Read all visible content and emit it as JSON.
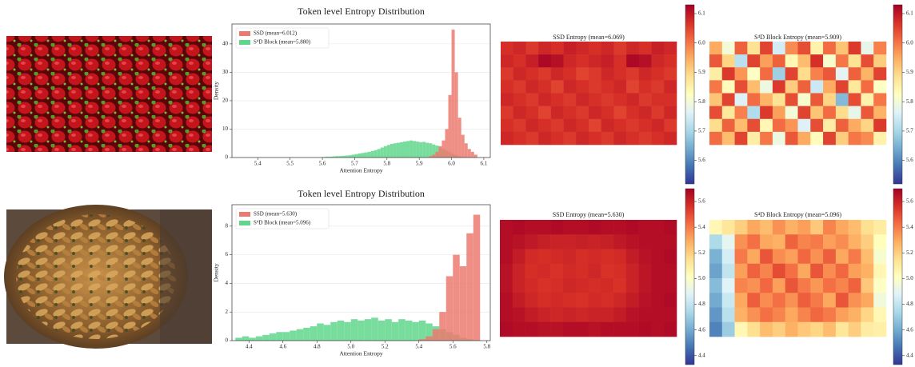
{
  "chart_data": [
    {
      "type": "histogram",
      "title": "Token level Entropy Distribution",
      "xlabel": "Attention Entropy",
      "ylabel": "Density",
      "bins": [
        5.6,
        5.61,
        5.62,
        5.63,
        5.64,
        5.65,
        5.66,
        5.67,
        5.68,
        5.69,
        5.7,
        5.71,
        5.72,
        5.73,
        5.74,
        5.75,
        5.76,
        5.77,
        5.78,
        5.79,
        5.8,
        5.81,
        5.82,
        5.83,
        5.84,
        5.85,
        5.86,
        5.87,
        5.88,
        5.89,
        5.9,
        5.91,
        5.92,
        5.93,
        5.94,
        5.95,
        5.96,
        5.97,
        5.98,
        5.99,
        6.0,
        6.01,
        6.02,
        6.03,
        6.04,
        6.05,
        6.06,
        6.07,
        6.08
      ],
      "series": [
        {
          "name": "S⁴D Block (mean=5.880)",
          "color": "#5fd68b",
          "values": [
            0.2,
            0.3,
            0.3,
            0.4,
            0.5,
            0.5,
            0.6,
            0.7,
            0.8,
            1.0,
            1.2,
            1.4,
            1.6,
            1.8,
            2.0,
            2.3,
            2.6,
            3.0,
            3.5,
            4.0,
            4.4,
            4.8,
            5.0,
            5.2,
            5.4,
            5.6,
            5.8,
            6.0,
            5.8,
            5.6,
            5.4,
            5.5,
            5.2,
            5.0,
            4.6,
            4.2,
            3.6,
            3.0,
            2.4,
            1.8,
            1.2,
            0.8,
            0.4,
            0.2,
            0.1,
            0,
            0,
            0
          ]
        },
        {
          "name": "SSD (mean=6.012)",
          "color": "#ec7a70",
          "values": [
            0,
            0,
            0,
            0,
            0,
            0,
            0,
            0,
            0,
            0,
            0,
            0,
            0,
            0,
            0,
            0,
            0,
            0,
            0,
            0,
            0,
            0,
            0,
            0,
            0,
            0,
            0,
            0,
            0,
            0,
            0,
            0,
            0,
            0.5,
            1,
            2,
            4,
            6,
            10,
            22,
            45,
            30,
            14,
            8,
            5,
            3,
            2,
            1
          ]
        }
      ],
      "legend_order": [
        1,
        0
      ],
      "legend": "upper left",
      "grid": true,
      "xlim": [
        5.32,
        6.12
      ],
      "xticks": [
        5.4,
        5.5,
        5.6,
        5.7,
        5.8,
        5.9,
        {
          "value": 6,
          "label": "6.0"
        },
        6.1
      ],
      "ylim": [
        0,
        47
      ],
      "yticks": [
        0,
        10,
        20,
        30,
        40
      ]
    },
    {
      "type": "heatmap",
      "title": "SSD Entropy (mean=6.069)",
      "colormap": "RdYlBu_r",
      "zlim": [
        5.52,
        6.13
      ],
      "zticks": [
        5.6,
        5.7,
        5.8,
        5.9,
        {
          "value": 6,
          "label": "6.0"
        },
        6.1
      ],
      "z": [
        [
          6.07,
          6.08,
          6.06,
          6.08,
          6.07,
          6.09,
          6.08,
          6.07,
          6.08,
          6.06,
          6.08,
          6.07,
          6.09,
          6.08
        ],
        [
          6.08,
          6.07,
          6.09,
          6.12,
          6.11,
          6.08,
          6.07,
          6.08,
          6.09,
          6.07,
          6.12,
          6.11,
          6.08,
          6.07
        ],
        [
          6.06,
          6.08,
          6.07,
          6.06,
          6.08,
          6.07,
          6.05,
          6.06,
          6.08,
          6.07,
          6.06,
          6.08,
          6.07,
          6.06
        ],
        [
          6.07,
          6.06,
          6.08,
          6.07,
          6.05,
          6.08,
          6.07,
          6.06,
          6.07,
          6.08,
          6.05,
          6.07,
          6.06,
          6.08
        ],
        [
          6.08,
          6.07,
          6.06,
          6.08,
          6.07,
          6.06,
          6.08,
          6.07,
          6.06,
          6.07,
          6.08,
          6.06,
          6.07,
          6.07
        ],
        [
          6.06,
          6.08,
          6.07,
          6.05,
          6.08,
          6.07,
          6.06,
          6.08,
          6.07,
          6.05,
          6.07,
          6.08,
          6.06,
          6.08
        ],
        [
          6.07,
          6.06,
          6.08,
          6.07,
          6.06,
          6.08,
          6.07,
          6.05,
          6.08,
          6.07,
          6.06,
          6.07,
          6.08,
          6.06
        ],
        [
          6.08,
          6.07,
          6.06,
          6.08,
          6.07,
          6.06,
          6.08,
          6.07,
          6.06,
          6.08,
          6.07,
          6.06,
          6.07,
          6.08
        ]
      ]
    },
    {
      "type": "heatmap",
      "title": "S⁴D Block Entropy (mean=5.909)",
      "colormap": "RdYlBu_r",
      "zlim": [
        5.52,
        6.13
      ],
      "zticks": [
        5.6,
        5.7,
        5.8,
        5.9,
        {
          "value": 6,
          "label": "6.0"
        },
        6.1
      ],
      "z": [
        [
          5.95,
          5.8,
          6.02,
          5.88,
          6.05,
          5.75,
          5.98,
          6.04,
          5.85,
          6.01,
          5.92,
          6.06,
          5.78,
          5.99
        ],
        [
          6.03,
          5.9,
          5.72,
          6.05,
          5.96,
          6.02,
          5.84,
          5.93,
          6.07,
          5.81,
          6.0,
          5.88,
          6.04,
          5.91
        ],
        [
          5.86,
          6.06,
          5.97,
          5.82,
          6.01,
          5.69,
          6.05,
          5.89,
          5.99,
          6.03,
          5.77,
          6.02,
          5.94,
          6.05
        ],
        [
          6.0,
          5.83,
          6.04,
          5.93,
          5.79,
          6.06,
          5.91,
          6.02,
          5.74,
          5.95,
          6.05,
          5.87,
          6.01,
          5.82
        ],
        [
          5.92,
          6.05,
          5.76,
          6.01,
          5.94,
          5.88,
          6.04,
          5.81,
          6.03,
          5.9,
          5.66,
          6.04,
          5.85,
          6.0
        ],
        [
          6.04,
          5.87,
          5.99,
          5.71,
          6.06,
          5.96,
          5.8,
          6.05,
          5.92,
          6.01,
          5.89,
          5.78,
          6.03,
          5.94
        ],
        [
          5.89,
          6.02,
          5.93,
          6.04,
          5.84,
          6.01,
          5.97,
          5.76,
          6.04,
          5.86,
          6.02,
          5.95,
          5.9,
          6.06
        ],
        [
          6.01,
          5.93,
          6.05,
          5.86,
          6.0,
          5.79,
          6.03,
          5.95,
          5.83,
          6.05,
          5.91,
          6.0,
          5.98,
          5.85
        ]
      ]
    },
    {
      "type": "histogram",
      "title": "Token level Entropy Distribution",
      "xlabel": "Attention Entropy",
      "ylabel": "Density",
      "bins": [
        4.32,
        4.36,
        4.4,
        4.44,
        4.48,
        4.52,
        4.56,
        4.6,
        4.64,
        4.68,
        4.72,
        4.76,
        4.8,
        4.84,
        4.88,
        4.92,
        4.96,
        5.0,
        5.04,
        5.08,
        5.12,
        5.16,
        5.2,
        5.24,
        5.28,
        5.32,
        5.36,
        5.4,
        5.44,
        5.48,
        5.52,
        5.56,
        5.6,
        5.64,
        5.68,
        5.72,
        5.76
      ],
      "series": [
        {
          "name": "S⁴D Block (mean=5.096)",
          "color": "#5fd68b",
          "values": [
            0.2,
            0.3,
            0.2,
            0.3,
            0.4,
            0.5,
            0.6,
            0.6,
            0.7,
            0.8,
            0.9,
            1.0,
            1.2,
            1.1,
            1.3,
            1.4,
            1.3,
            1.5,
            1.4,
            1.5,
            1.6,
            1.4,
            1.5,
            1.3,
            1.5,
            1.4,
            1.3,
            1.4,
            1.2,
            1.0,
            0.8,
            0.6,
            0.4,
            0.2,
            0.1,
            0
          ]
        },
        {
          "name": "SSD (mean=5.630)",
          "color": "#ec7a70",
          "values": [
            0,
            0,
            0,
            0,
            0,
            0,
            0,
            0,
            0,
            0,
            0,
            0,
            0,
            0,
            0,
            0,
            0,
            0,
            0,
            0,
            0,
            0,
            0,
            0,
            0,
            0,
            0,
            0.1,
            0.3,
            0.8,
            2.0,
            4.5,
            6.0,
            5.2,
            7.5,
            8.8
          ]
        }
      ],
      "legend_order": [
        1,
        0
      ],
      "legend": "upper left",
      "grid": true,
      "xlim": [
        4.3,
        5.82
      ],
      "xticks": [
        4.4,
        4.6,
        4.8,
        {
          "value": 5,
          "label": "5.0"
        },
        5.2,
        5.4,
        5.6,
        5.8
      ],
      "ylim": [
        0,
        9.5
      ],
      "yticks": [
        0,
        2,
        4,
        6,
        8
      ]
    },
    {
      "type": "heatmap",
      "title": "SSD Entropy (mean=5.630)",
      "colormap": "RdYlBu_r",
      "zlim": [
        4.33,
        5.7
      ],
      "zticks": [
        4.4,
        4.6,
        4.8,
        {
          "value": 5,
          "label": "5.0"
        },
        5.2,
        5.4,
        5.6
      ],
      "z": [
        [
          5.66,
          5.67,
          5.66,
          5.66,
          5.67,
          5.66,
          5.66,
          5.67,
          5.66,
          5.66,
          5.67,
          5.66,
          5.66,
          5.67
        ],
        [
          5.66,
          5.65,
          5.63,
          5.61,
          5.6,
          5.6,
          5.61,
          5.6,
          5.61,
          5.63,
          5.65,
          5.66,
          5.66,
          5.66
        ],
        [
          5.66,
          5.62,
          5.58,
          5.57,
          5.58,
          5.59,
          5.57,
          5.58,
          5.57,
          5.58,
          5.62,
          5.65,
          5.66,
          5.67
        ],
        [
          5.65,
          5.6,
          5.57,
          5.58,
          5.56,
          5.58,
          5.57,
          5.59,
          5.56,
          5.57,
          5.6,
          5.64,
          5.66,
          5.66
        ],
        [
          5.65,
          5.6,
          5.58,
          5.56,
          5.57,
          5.59,
          5.58,
          5.57,
          5.58,
          5.56,
          5.6,
          5.64,
          5.66,
          5.66
        ],
        [
          5.66,
          5.62,
          5.59,
          5.57,
          5.58,
          5.57,
          5.56,
          5.58,
          5.57,
          5.59,
          5.62,
          5.65,
          5.66,
          5.67
        ],
        [
          5.66,
          5.65,
          5.62,
          5.6,
          5.59,
          5.6,
          5.59,
          5.6,
          5.6,
          5.62,
          5.65,
          5.66,
          5.66,
          5.66
        ],
        [
          5.67,
          5.66,
          5.66,
          5.65,
          5.65,
          5.66,
          5.66,
          5.65,
          5.66,
          5.66,
          5.66,
          5.67,
          5.66,
          5.67
        ]
      ]
    },
    {
      "type": "heatmap",
      "title": "S⁴D Block Entropy (mean=5.096)",
      "colormap": "RdYlBu_r",
      "zlim": [
        4.33,
        5.7
      ],
      "zticks": [
        4.4,
        4.6,
        4.8,
        {
          "value": 5,
          "label": "5.0"
        },
        5.2,
        5.4,
        5.6
      ],
      "z": [
        [
          5.05,
          5.12,
          5.2,
          5.3,
          5.25,
          5.35,
          5.28,
          5.32,
          5.22,
          5.38,
          5.3,
          5.25,
          5.15,
          5.1
        ],
        [
          4.75,
          4.9,
          5.35,
          5.42,
          5.3,
          5.28,
          5.45,
          5.38,
          5.4,
          5.32,
          5.36,
          5.28,
          5.2,
          5.02
        ],
        [
          4.62,
          4.85,
          5.4,
          5.3,
          5.48,
          5.36,
          5.32,
          5.44,
          5.35,
          5.46,
          5.3,
          5.4,
          5.25,
          4.98
        ],
        [
          4.58,
          4.8,
          5.32,
          5.45,
          5.38,
          5.5,
          5.42,
          5.3,
          5.48,
          5.36,
          5.44,
          5.32,
          5.28,
          5.05
        ],
        [
          4.65,
          4.88,
          5.38,
          5.35,
          5.44,
          5.32,
          5.48,
          5.4,
          5.34,
          5.42,
          5.38,
          5.45,
          5.22,
          5.0
        ],
        [
          4.6,
          4.82,
          5.3,
          5.46,
          5.36,
          5.42,
          5.35,
          5.46,
          5.4,
          5.3,
          5.48,
          5.35,
          5.3,
          4.95
        ],
        [
          4.55,
          4.78,
          5.28,
          5.35,
          5.42,
          5.38,
          5.3,
          5.38,
          5.44,
          5.4,
          5.32,
          5.28,
          5.18,
          5.05
        ],
        [
          4.5,
          4.7,
          5.05,
          5.15,
          5.25,
          5.2,
          5.28,
          5.22,
          5.18,
          5.25,
          5.12,
          5.2,
          5.1,
          5.08
        ]
      ]
    }
  ]
}
